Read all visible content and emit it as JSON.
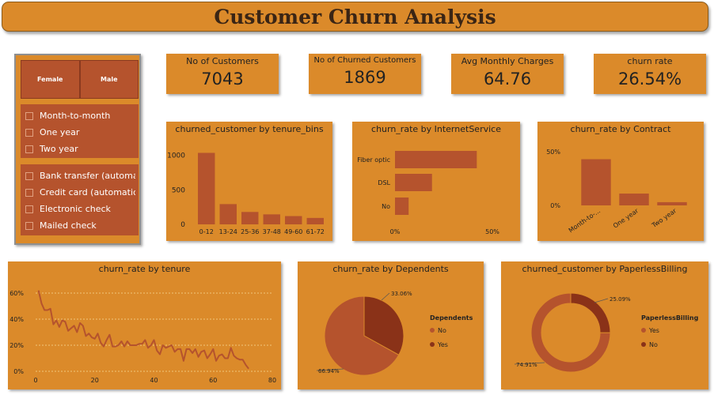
{
  "title": "Customer Churn Analysis",
  "colors": {
    "background": "#db8a2a",
    "bar": "#b5532d",
    "dark": "#8a3218",
    "line": "#b5532d",
    "grid": "#f2c77a"
  },
  "slicers": {
    "gender": [
      "Female",
      "Male"
    ],
    "contract": [
      "Month-to-month",
      "One year",
      "Two year"
    ],
    "payment": [
      "Bank transfer (automat...",
      "Credit card (automatic)",
      "Electronic check",
      "Mailed check"
    ]
  },
  "kpis": [
    {
      "label": "No of Customers",
      "value": "7043"
    },
    {
      "label": "No of Churned Customers",
      "value": "1869"
    },
    {
      "label": "Avg Monthly Charges",
      "value": "64.76"
    },
    {
      "label": "churn rate",
      "value": "26.54%"
    }
  ],
  "chart_data": [
    {
      "id": "tenure_bins",
      "type": "bar",
      "title": "churned_customer by tenure_bins",
      "categories": [
        "0-12",
        "13-24",
        "25-36",
        "37-48",
        "49-60",
        "61-72"
      ],
      "values": [
        1037,
        294,
        180,
        145,
        120,
        93
      ],
      "yticks": [
        "0",
        "500",
        "1000"
      ],
      "ylim": [
        0,
        1100
      ]
    },
    {
      "id": "internet",
      "type": "bar",
      "orientation": "horizontal",
      "title": "churn_rate by InternetService",
      "categories": [
        "Fiber optic",
        "DSL",
        "No"
      ],
      "values": [
        0.42,
        0.19,
        0.07
      ],
      "xticks": [
        "0%",
        "50%"
      ],
      "xlim": [
        0,
        0.5
      ]
    },
    {
      "id": "contract",
      "type": "bar",
      "title": "churn_rate by Contract",
      "categories": [
        "Month-to-...",
        "One year",
        "Two year"
      ],
      "values": [
        0.43,
        0.11,
        0.03
      ],
      "yticks": [
        "0%",
        "50%"
      ],
      "ylim": [
        0,
        0.5
      ]
    },
    {
      "id": "tenure_line",
      "type": "line",
      "title": "churn_rate by tenure",
      "x": [
        1,
        2,
        3,
        4,
        5,
        6,
        7,
        8,
        9,
        10,
        11,
        12,
        13,
        14,
        15,
        16,
        17,
        18,
        19,
        20,
        21,
        22,
        23,
        24,
        25,
        26,
        27,
        28,
        29,
        30,
        31,
        32,
        33,
        34,
        35,
        36,
        37,
        38,
        39,
        40,
        41,
        42,
        43,
        44,
        45,
        46,
        47,
        48,
        49,
        50,
        51,
        52,
        53,
        54,
        55,
        56,
        57,
        58,
        59,
        60,
        61,
        62,
        63,
        64,
        65,
        66,
        67,
        68,
        69,
        70,
        71,
        72
      ],
      "y": [
        0.62,
        0.52,
        0.47,
        0.47,
        0.48,
        0.36,
        0.39,
        0.34,
        0.39,
        0.38,
        0.31,
        0.33,
        0.35,
        0.3,
        0.37,
        0.35,
        0.27,
        0.29,
        0.26,
        0.25,
        0.29,
        0.22,
        0.19,
        0.24,
        0.28,
        0.19,
        0.19,
        0.2,
        0.23,
        0.19,
        0.23,
        0.2,
        0.2,
        0.2,
        0.21,
        0.21,
        0.24,
        0.18,
        0.2,
        0.24,
        0.16,
        0.13,
        0.2,
        0.18,
        0.19,
        0.2,
        0.15,
        0.17,
        0.17,
        0.08,
        0.17,
        0.17,
        0.14,
        0.17,
        0.11,
        0.15,
        0.16,
        0.1,
        0.13,
        0.17,
        0.08,
        0.12,
        0.13,
        0.1,
        0.1,
        0.18,
        0.12,
        0.1,
        0.09,
        0.09,
        0.05,
        0.02
      ],
      "yticks": [
        "0%",
        "20%",
        "40%",
        "60%"
      ],
      "ylim": [
        0,
        0.6
      ],
      "xticks": [
        "0",
        "20",
        "40",
        "60",
        "80"
      ],
      "xlim": [
        0,
        80
      ]
    },
    {
      "id": "dependents",
      "type": "pie",
      "title": "churn_rate by Dependents",
      "legend_title": "Dependents",
      "labels": [
        "No",
        "Yes"
      ],
      "values": [
        66.94,
        33.06
      ],
      "data_labels": [
        "66.94%",
        "33.06%"
      ]
    },
    {
      "id": "paperless",
      "type": "pie",
      "donut": true,
      "title": "churned_customer by PaperlessBilling",
      "legend_title": "PaperlessBilling",
      "labels": [
        "Yes",
        "No"
      ],
      "values": [
        74.91,
        25.09
      ],
      "data_labels": [
        "74.91%",
        "25.09%"
      ]
    }
  ]
}
